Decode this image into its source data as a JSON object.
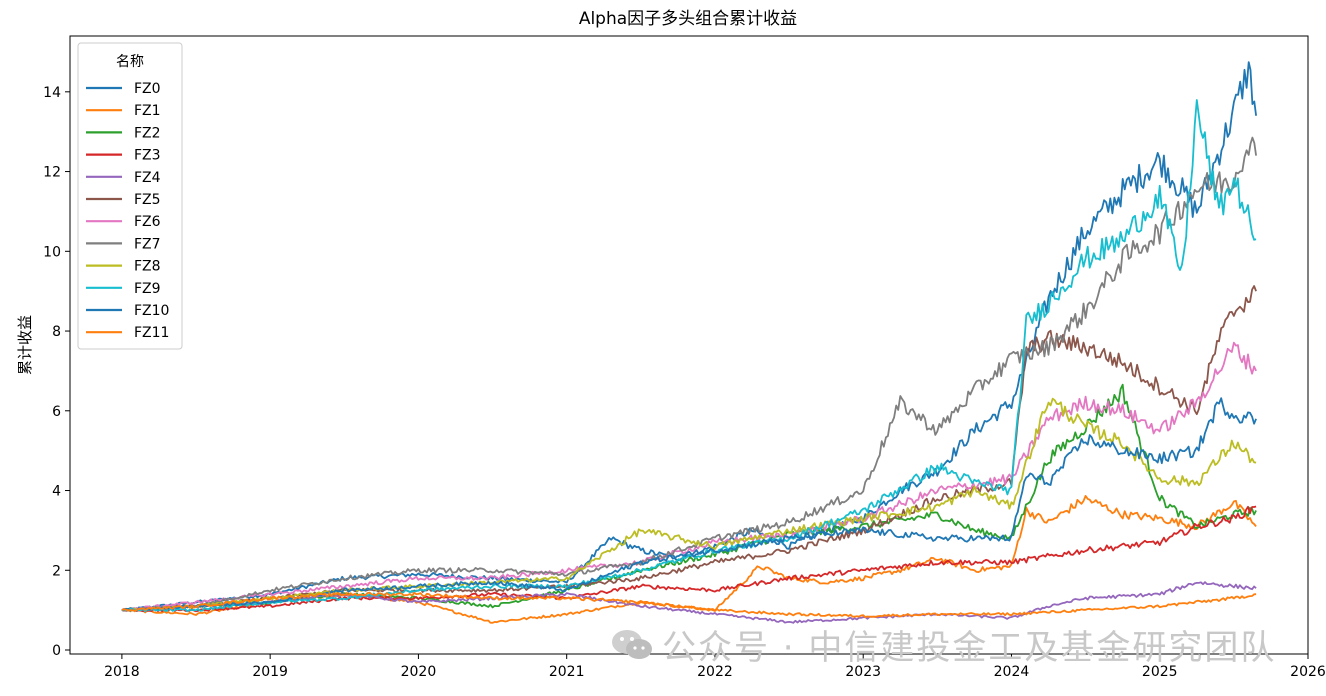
{
  "chart_data": {
    "type": "line",
    "title": "Alpha因子多头组合累计收益",
    "xlabel": "",
    "ylabel": "累计收益",
    "xlim": [
      2017.65,
      2026.0
    ],
    "ylim": [
      -0.1,
      15.4
    ],
    "x_ticks": [
      2018,
      2019,
      2020,
      2021,
      2022,
      2023,
      2024,
      2025,
      2026
    ],
    "y_ticks": [
      0,
      2,
      4,
      6,
      8,
      10,
      12,
      14
    ],
    "grid": false,
    "legend": {
      "title": "名称",
      "placement": "top-left"
    },
    "series": [
      {
        "name": "FZ0",
        "color": "#1f77b4",
        "x": [
          2018.0,
          2018.5,
          2019.0,
          2019.5,
          2020.0,
          2020.5,
          2021.0,
          2021.3,
          2021.5,
          2021.75,
          2022.0,
          2022.25,
          2022.5,
          2022.75,
          2023.0,
          2023.25,
          2023.5,
          2023.75,
          2024.0,
          2024.1,
          2024.25,
          2024.5,
          2024.75,
          2025.0,
          2025.25,
          2025.5,
          2025.6,
          2025.65
        ],
        "values": [
          1.0,
          1.2,
          1.4,
          1.8,
          1.9,
          1.8,
          1.7,
          2.8,
          2.5,
          2.3,
          2.6,
          3.0,
          2.6,
          3.0,
          3.3,
          4.0,
          4.5,
          5.5,
          6.2,
          7.2,
          8.8,
          10.5,
          11.5,
          12.3,
          11.0,
          13.5,
          14.6,
          13.4
        ]
      },
      {
        "name": "FZ1",
        "color": "#ff7f0e",
        "x": [
          2018.0,
          2018.5,
          2019.0,
          2019.5,
          2020.0,
          2020.5,
          2021.0,
          2021.5,
          2022.0,
          2022.3,
          2022.5,
          2022.75,
          2023.0,
          2023.25,
          2023.5,
          2023.75,
          2024.0,
          2024.1,
          2024.25,
          2024.5,
          2024.75,
          2025.0,
          2025.25,
          2025.5,
          2025.65
        ],
        "values": [
          1.0,
          0.9,
          1.2,
          1.4,
          1.2,
          0.7,
          0.9,
          1.2,
          1.0,
          2.1,
          1.8,
          1.7,
          1.8,
          2.0,
          2.3,
          2.0,
          2.1,
          3.5,
          3.2,
          3.8,
          3.4,
          3.3,
          3.1,
          3.7,
          3.1
        ]
      },
      {
        "name": "FZ2",
        "color": "#2ca02c",
        "x": [
          2018.0,
          2018.5,
          2019.0,
          2019.5,
          2020.0,
          2020.5,
          2021.0,
          2021.5,
          2022.0,
          2022.5,
          2023.0,
          2023.5,
          2023.75,
          2024.0,
          2024.25,
          2024.5,
          2024.75,
          2025.0,
          2025.25,
          2025.5,
          2025.65
        ],
        "values": [
          1.0,
          1.1,
          1.2,
          1.4,
          1.3,
          1.1,
          1.5,
          2.0,
          2.4,
          2.9,
          3.1,
          3.4,
          3.0,
          2.8,
          4.8,
          5.6,
          6.5,
          3.8,
          3.1,
          3.4,
          3.5
        ]
      },
      {
        "name": "FZ3",
        "color": "#d62728",
        "x": [
          2018.0,
          2018.5,
          2019.0,
          2019.5,
          2020.0,
          2020.5,
          2021.0,
          2021.5,
          2022.0,
          2022.5,
          2023.0,
          2023.5,
          2024.0,
          2024.5,
          2025.0,
          2025.25,
          2025.5,
          2025.65
        ],
        "values": [
          1.0,
          1.0,
          1.1,
          1.3,
          1.3,
          1.4,
          1.3,
          1.6,
          1.5,
          1.8,
          2.0,
          2.2,
          2.2,
          2.5,
          2.7,
          3.1,
          3.3,
          3.6
        ]
      },
      {
        "name": "FZ4",
        "color": "#9467bd",
        "x": [
          2018.0,
          2018.5,
          2019.0,
          2019.5,
          2020.0,
          2020.5,
          2021.0,
          2021.5,
          2022.0,
          2022.5,
          2023.0,
          2023.5,
          2024.0,
          2024.25,
          2024.5,
          2025.0,
          2025.25,
          2025.5,
          2025.65
        ],
        "values": [
          1.0,
          1.1,
          1.2,
          1.4,
          1.2,
          1.3,
          1.4,
          1.1,
          0.9,
          0.7,
          0.8,
          0.9,
          0.8,
          1.1,
          1.3,
          1.4,
          1.7,
          1.6,
          1.55
        ]
      },
      {
        "name": "FZ5",
        "color": "#8c564b",
        "x": [
          2018.0,
          2018.5,
          2019.0,
          2019.5,
          2020.0,
          2020.5,
          2021.0,
          2021.5,
          2022.0,
          2022.5,
          2023.0,
          2023.5,
          2024.0,
          2024.1,
          2024.25,
          2024.5,
          2024.75,
          2025.0,
          2025.25,
          2025.4,
          2025.5,
          2025.65
        ],
        "values": [
          1.0,
          1.1,
          1.3,
          1.5,
          1.5,
          1.5,
          1.6,
          1.8,
          2.2,
          2.5,
          3.0,
          3.8,
          4.2,
          7.5,
          7.8,
          7.6,
          7.2,
          6.6,
          6.0,
          7.8,
          8.5,
          9.0
        ]
      },
      {
        "name": "FZ6",
        "color": "#e377c2",
        "x": [
          2018.0,
          2018.5,
          2019.0,
          2019.5,
          2020.0,
          2020.5,
          2021.0,
          2021.5,
          2022.0,
          2022.5,
          2023.0,
          2023.5,
          2024.0,
          2024.25,
          2024.5,
          2024.75,
          2025.0,
          2025.25,
          2025.5,
          2025.65
        ],
        "values": [
          1.0,
          1.2,
          1.4,
          1.6,
          1.8,
          1.8,
          2.0,
          2.2,
          2.7,
          2.9,
          3.3,
          4.0,
          4.3,
          5.8,
          6.2,
          6.0,
          5.5,
          6.2,
          7.6,
          7.0
        ]
      },
      {
        "name": "FZ7",
        "color": "#7f7f7f",
        "x": [
          2018.0,
          2018.5,
          2019.0,
          2019.5,
          2020.0,
          2020.5,
          2021.0,
          2021.5,
          2022.0,
          2022.5,
          2023.0,
          2023.25,
          2023.5,
          2023.75,
          2024.0,
          2024.25,
          2024.5,
          2024.75,
          2025.0,
          2025.25,
          2025.5,
          2025.6,
          2025.65
        ],
        "values": [
          1.0,
          1.1,
          1.5,
          1.8,
          2.0,
          2.0,
          1.9,
          2.2,
          2.8,
          3.2,
          4.0,
          6.2,
          5.5,
          6.5,
          7.3,
          7.6,
          8.5,
          9.8,
          10.5,
          11.6,
          11.8,
          12.8,
          12.4
        ]
      },
      {
        "name": "FZ8",
        "color": "#bcbd22",
        "x": [
          2018.0,
          2018.5,
          2019.0,
          2019.5,
          2020.0,
          2020.5,
          2021.0,
          2021.25,
          2021.5,
          2022.0,
          2022.5,
          2023.0,
          2023.5,
          2023.75,
          2024.0,
          2024.25,
          2024.5,
          2024.75,
          2025.0,
          2025.25,
          2025.5,
          2025.65
        ],
        "values": [
          1.0,
          1.1,
          1.3,
          1.5,
          1.6,
          1.7,
          1.8,
          2.4,
          3.0,
          2.6,
          3.0,
          3.3,
          3.6,
          4.0,
          3.6,
          6.3,
          5.6,
          5.2,
          4.3,
          4.2,
          5.2,
          4.7
        ]
      },
      {
        "name": "FZ9",
        "color": "#17becf",
        "x": [
          2018.0,
          2018.5,
          2019.0,
          2019.5,
          2020.0,
          2020.5,
          2021.0,
          2021.5,
          2022.0,
          2022.5,
          2023.0,
          2023.5,
          2023.75,
          2024.0,
          2024.1,
          2024.25,
          2024.5,
          2024.75,
          2025.0,
          2025.15,
          2025.25,
          2025.4,
          2025.5,
          2025.65
        ],
        "values": [
          1.0,
          1.0,
          1.2,
          1.3,
          1.5,
          1.6,
          1.6,
          2.0,
          2.5,
          2.8,
          3.5,
          4.6,
          4.2,
          4.0,
          8.2,
          8.7,
          9.8,
          10.3,
          11.4,
          9.4,
          13.6,
          11.0,
          11.8,
          10.3
        ]
      },
      {
        "name": "FZ10",
        "color": "#1f77b4",
        "x": [
          2018.0,
          2018.5,
          2019.0,
          2019.5,
          2020.0,
          2020.5,
          2021.0,
          2021.5,
          2022.0,
          2022.5,
          2023.0,
          2023.5,
          2024.0,
          2024.1,
          2024.25,
          2024.5,
          2024.75,
          2025.0,
          2025.25,
          2025.4,
          2025.5,
          2025.65
        ],
        "values": [
          1.0,
          1.1,
          1.2,
          1.5,
          1.6,
          1.7,
          1.5,
          2.2,
          2.5,
          2.8,
          3.0,
          2.8,
          2.8,
          4.4,
          4.2,
          5.3,
          5.0,
          4.8,
          5.0,
          6.2,
          5.9,
          5.8
        ]
      },
      {
        "name": "FZ11",
        "color": "#ff7f0e",
        "x": [
          2018.0,
          2018.5,
          2019.0,
          2019.5,
          2020.0,
          2020.5,
          2021.0,
          2021.5,
          2022.0,
          2022.5,
          2023.0,
          2023.5,
          2024.0,
          2024.5,
          2025.0,
          2025.5,
          2025.65
        ],
        "values": [
          1.0,
          1.1,
          1.3,
          1.4,
          1.4,
          1.3,
          1.3,
          1.2,
          1.0,
          0.9,
          0.85,
          0.9,
          0.9,
          1.0,
          1.1,
          1.3,
          1.4
        ]
      }
    ]
  },
  "watermark": "公众号 · 中信建投金工及基金研究团队"
}
